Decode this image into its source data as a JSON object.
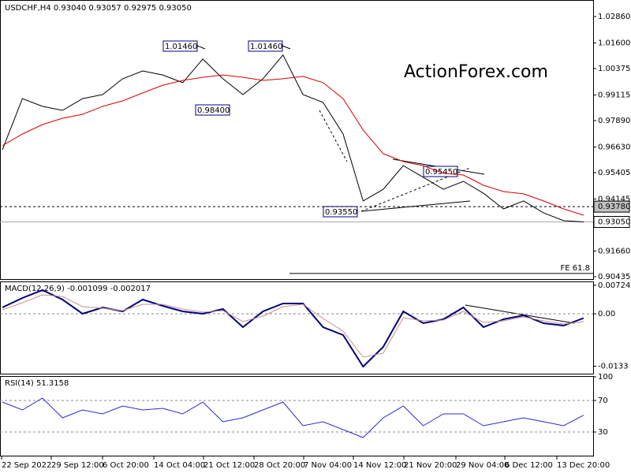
{
  "chart_data": [
    {
      "type": "line",
      "title": "USDCHF,H4",
      "subtitle": "0.93040 0.93057 0.92975 0.93050",
      "watermark": "ActionForex.com",
      "ylim": [
        0.9032,
        1.0365
      ],
      "yticks": [
        {
          "value": 1.0286,
          "label": "1.02860"
        },
        {
          "value": 1.016,
          "label": "1.01600"
        },
        {
          "value": 1.00375,
          "label": "1.00375"
        },
        {
          "value": 0.99115,
          "label": "0.99115"
        },
        {
          "value": 0.9789,
          "label": "0.97890"
        },
        {
          "value": 0.9663,
          "label": "0.96630"
        },
        {
          "value": 0.95405,
          "label": "0.95405"
        },
        {
          "value": 0.94145,
          "label": "0.94145"
        },
        {
          "value": 0.9166,
          "label": "0.91660"
        },
        {
          "value": 0.90435,
          "label": "0.90435"
        }
      ],
      "price_markers": [
        {
          "value": 0.9378,
          "label": "0.93780"
        },
        {
          "value": 0.9305,
          "label": "0.93050"
        }
      ],
      "annotations": [
        "1.01460",
        "1.01460",
        "0.98400",
        "0.95450",
        "0.93550"
      ],
      "fe_line": {
        "value": 0.9059,
        "label": "FE 61.8"
      },
      "series": [
        {
          "name": "USDCHF",
          "color": "#000000",
          "values": [
            0.965,
            0.9894,
            0.9857,
            0.9838,
            0.9894,
            0.9913,
            0.9989,
            1.0026,
            1.0007,
            0.997,
            1.0083,
            0.9989,
            0.9913,
            0.9989,
            1.0102,
            0.9913,
            0.9876,
            0.9725,
            0.9405,
            0.9461,
            0.9574,
            0.9518,
            0.9461,
            0.9499,
            0.9442,
            0.9367,
            0.9405,
            0.9348,
            0.9311,
            0.9305
          ]
        },
        {
          "name": "MA",
          "color": "#d40000",
          "values": [
            0.9669,
            0.9725,
            0.977,
            0.98,
            0.9819,
            0.9857,
            0.9883,
            0.9921,
            0.9958,
            0.9981,
            0.9996,
            1.0007,
            0.9996,
            0.9981,
            0.9989,
            1.0,
            0.997,
            0.9894,
            0.9744,
            0.9631,
            0.9593,
            0.9574,
            0.9537,
            0.9529,
            0.948,
            0.945,
            0.9439,
            0.9405,
            0.9367,
            0.9337
          ]
        }
      ]
    },
    {
      "type": "line",
      "title": "MACD(12,26,9)",
      "last_values": [
        -0.001099,
        -0.002017
      ],
      "ylim": [
        -0.0152,
        0.0082
      ],
      "yticks": [
        {
          "value": 0.00724,
          "label": "0.00724"
        },
        {
          "value": 0,
          "label": "0.00"
        },
        -0.0133
      ],
      "series": [
        {
          "name": "MACD",
          "color": "#00007a",
          "values": [
            0.0016,
            0.004,
            0.006,
            0.0036,
            0,
            0.0016,
            0.0006,
            0.0036,
            0.002,
            0.0006,
            0,
            0.0012,
            -0.0034,
            0.0006,
            0.0026,
            0.0026,
            -0.0034,
            -0.0054,
            -0.0134,
            -0.0084,
            0.0006,
            -0.0024,
            -0.0014,
            0.0016,
            -0.0034,
            -0.0014,
            -0.0004,
            -0.0024,
            -0.003,
            -0.0011
          ]
        },
        {
          "name": "Signal",
          "color": "#c89090",
          "values": [
            0.001,
            0.0028,
            0.0048,
            0.0044,
            0.0018,
            0.0014,
            0.0008,
            0.0024,
            0.0024,
            0.0012,
            0.0004,
            0.0008,
            -0.002,
            -0.0006,
            0.0018,
            0.0024,
            -0.0012,
            -0.0044,
            -0.011,
            -0.01,
            -0.001,
            -0.0018,
            -0.0016,
            0.0006,
            -0.0022,
            -0.0018,
            -0.0008,
            -0.0018,
            -0.0026,
            -0.002
          ]
        }
      ]
    },
    {
      "type": "line",
      "title": "RSI(14)",
      "last_values": [
        51.3158
      ],
      "ylim": [
        0,
        101
      ],
      "yticks": [
        100,
        70,
        30
      ],
      "levels": [
        70,
        30
      ],
      "x_labels": [
        "22 Sep 2022",
        "29 Sep 12:00",
        "6 Oct 20:00",
        "14 Oct 04:00",
        "21 Oct 12:00",
        "28 Oct 20:00",
        "7 Nov 04:00",
        "14 Nov 12:00",
        "21 Nov 20:00",
        "29 Nov 04:00",
        "6 Dec 12:00",
        "13 Dec 20:00"
      ],
      "series": [
        {
          "name": "RSI",
          "color": "#2a2ad0",
          "values": [
            68,
            58,
            73,
            48,
            58,
            53,
            63,
            58,
            60,
            53,
            68,
            43,
            48,
            58,
            68,
            38,
            43,
            33,
            23,
            48,
            63,
            38,
            53,
            53,
            38,
            43,
            48,
            43,
            38,
            51.3158
          ]
        }
      ]
    }
  ]
}
